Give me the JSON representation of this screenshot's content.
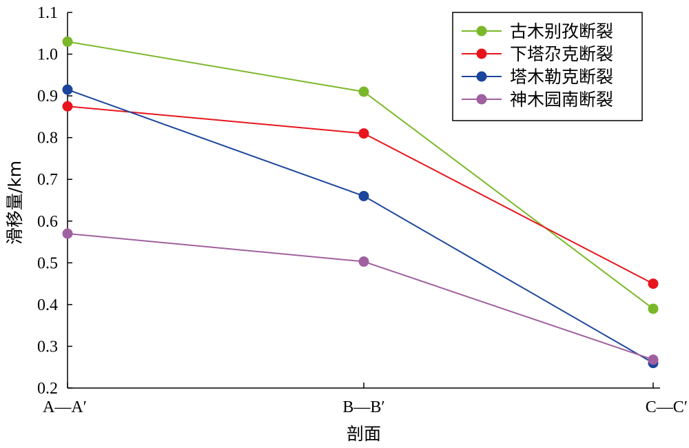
{
  "chart_data": {
    "type": "line",
    "xlabel": "剖面",
    "ylabel": "滑移量/km",
    "categories": [
      "A—A′",
      "B—B′",
      "C—C′"
    ],
    "ylim": [
      0.2,
      1.1
    ],
    "yticks": [
      "0.2",
      "0.3",
      "0.4",
      "0.5",
      "0.6",
      "0.7",
      "0.8",
      "0.9",
      "1.0",
      "1.1"
    ],
    "grid": false,
    "legend_position": "top-right",
    "series": [
      {
        "name": "古木别孜断裂",
        "color": "#7ab829",
        "values": [
          1.03,
          0.91,
          0.39
        ]
      },
      {
        "name": "下塔尕克断裂",
        "color": "#e8141c",
        "values": [
          0.875,
          0.81,
          0.45
        ]
      },
      {
        "name": "塔木勒克断裂",
        "color": "#1b459c",
        "values": [
          0.915,
          0.66,
          0.26
        ]
      },
      {
        "name": "神木园南断裂",
        "color": "#a0609f",
        "values": [
          0.57,
          0.503,
          0.268
        ]
      }
    ]
  }
}
